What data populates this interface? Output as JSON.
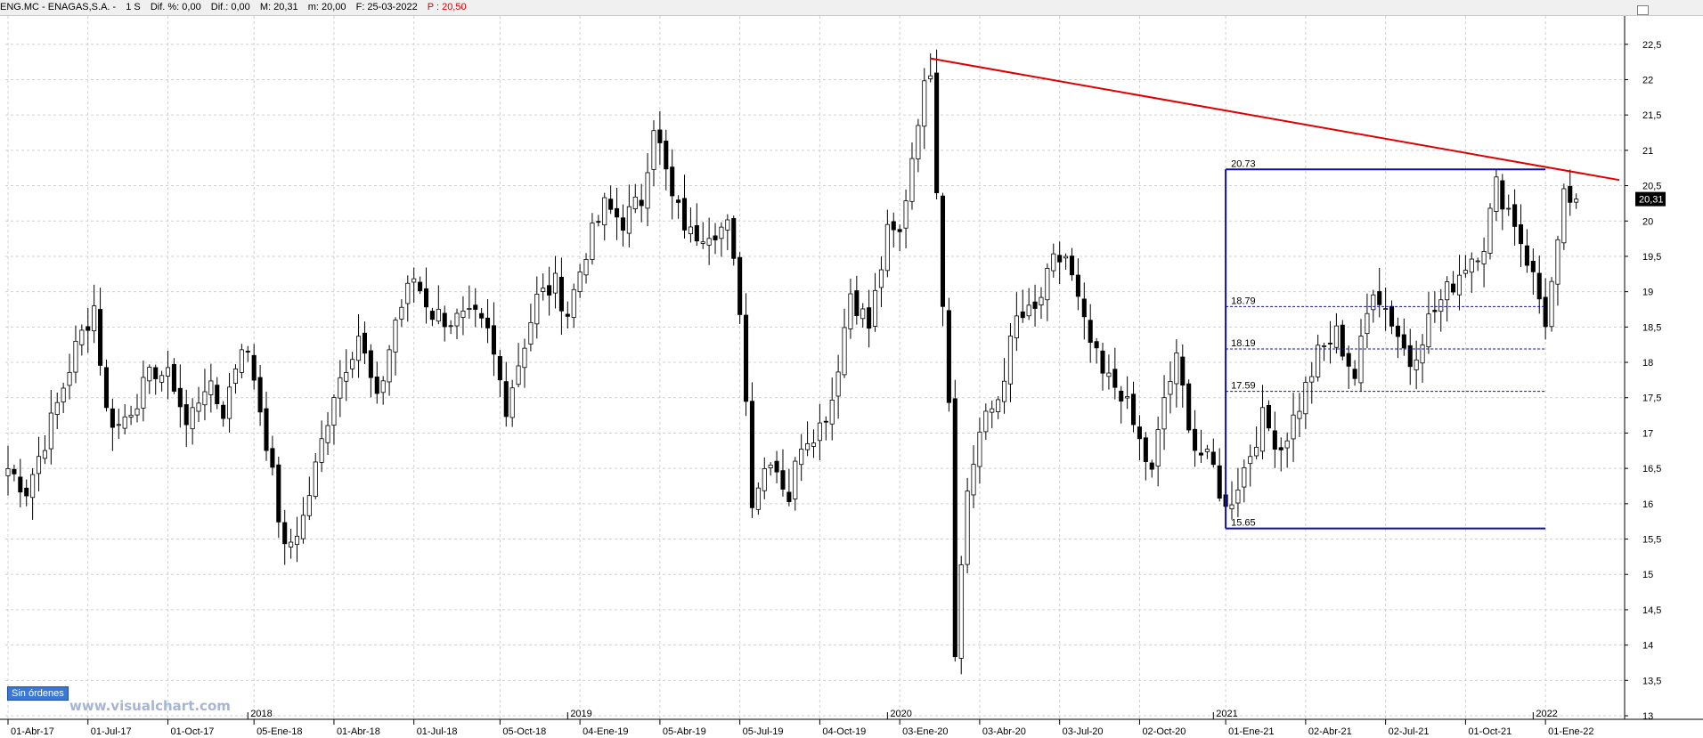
{
  "header": {
    "symbol": "ENG.MC - ENAGAS,S.A. -",
    "timeframe": "1 S",
    "dif_pct": "Dif. %: 0,00",
    "dif": "Dif.: 0,00",
    "max": "M: 20,31",
    "min": "m: 20,00",
    "date": "F: 25-03-2022",
    "price": "P : 20,50"
  },
  "badge": "Sin órdenes",
  "watermark": "www.visualchart.com",
  "colors": {
    "up": "#ffffff",
    "down": "#000000",
    "trendline": "#e00000",
    "fibo": "#1010a0",
    "grid": "#d0d0d0"
  },
  "chart_data": {
    "type": "candlestick",
    "y_ticks": [
      "22,5",
      "22",
      "21,5",
      "21",
      "20,5",
      "20",
      "19,5",
      "19",
      "18,5",
      "18",
      "17,5",
      "17",
      "16,5",
      "16",
      "15,5",
      "15",
      "14,5",
      "14",
      "13,5",
      "13"
    ],
    "ylim": [
      12.95,
      22.9
    ],
    "x_labels": [
      "01-Abr-17",
      "01-Jul-17",
      "01-Oct-17",
      "05-Ene-18",
      "01-Abr-18",
      "01-Jul-18",
      "05-Oct-18",
      "04-Ene-19",
      "05-Abr-19",
      "05-Jul-19",
      "04-Oct-19",
      "03-Ene-20",
      "03-Abr-20",
      "03-Jul-20",
      "02-Oct-20",
      "01-Ene-21",
      "02-Abr-21",
      "02-Jul-21",
      "01-Oct-21",
      "01-Ene-22"
    ],
    "x_label_weeks": [
      0,
      13,
      26,
      40,
      53,
      66,
      80,
      93,
      106,
      119,
      132,
      145,
      158,
      171,
      184,
      198,
      211,
      224,
      237,
      250
    ],
    "year_labels": [
      "2018",
      "2019",
      "2020",
      "2021",
      "2022"
    ],
    "year_label_weeks": [
      39,
      91,
      143,
      196,
      248
    ],
    "last_price_label": "20,31",
    "weeks_total": 262,
    "anchors": [
      [
        0,
        16.5
      ],
      [
        3,
        16.2
      ],
      [
        6,
        16.9
      ],
      [
        8,
        17.4
      ],
      [
        11,
        18.2
      ],
      [
        14,
        18.8
      ],
      [
        16,
        17.3
      ],
      [
        18,
        17.1
      ],
      [
        21,
        17.5
      ],
      [
        24,
        17.9
      ],
      [
        27,
        17.7
      ],
      [
        29,
        17.1
      ],
      [
        32,
        17.7
      ],
      [
        35,
        17.3
      ],
      [
        38,
        18.3
      ],
      [
        40,
        17.8
      ],
      [
        42,
        16.9
      ],
      [
        45,
        15.3
      ],
      [
        48,
        15.8
      ],
      [
        50,
        16.5
      ],
      [
        53,
        17.6
      ],
      [
        57,
        18.4
      ],
      [
        60,
        17.4
      ],
      [
        63,
        18.6
      ],
      [
        66,
        19.2
      ],
      [
        69,
        18.7
      ],
      [
        72,
        18.6
      ],
      [
        76,
        18.6
      ],
      [
        78,
        18.4
      ],
      [
        81,
        17.4
      ],
      [
        83,
        18.0
      ],
      [
        86,
        18.9
      ],
      [
        89,
        19.1
      ],
      [
        91,
        18.7
      ],
      [
        94,
        19.6
      ],
      [
        97,
        20.2
      ],
      [
        100,
        20.0
      ],
      [
        103,
        20.3
      ],
      [
        105,
        21.4
      ],
      [
        108,
        20.3
      ],
      [
        111,
        19.8
      ],
      [
        114,
        19.9
      ],
      [
        117,
        19.9
      ],
      [
        119,
        18.8
      ],
      [
        121,
        16.1
      ],
      [
        124,
        16.7
      ],
      [
        127,
        16.1
      ],
      [
        129,
        16.9
      ],
      [
        132,
        17.1
      ],
      [
        134,
        17.5
      ],
      [
        137,
        19.0
      ],
      [
        140,
        18.5
      ],
      [
        143,
        19.8
      ],
      [
        145,
        19.8
      ],
      [
        148,
        21.5
      ],
      [
        150,
        22.2
      ],
      [
        152,
        18.9
      ],
      [
        153,
        17.5
      ],
      [
        154,
        14.0
      ],
      [
        156,
        16.2
      ],
      [
        158,
        17.0
      ],
      [
        161,
        17.5
      ],
      [
        164,
        18.6
      ],
      [
        167,
        18.7
      ],
      [
        170,
        19.4
      ],
      [
        172,
        19.5
      ],
      [
        175,
        18.5
      ],
      [
        178,
        17.8
      ],
      [
        181,
        17.6
      ],
      [
        183,
        17.1
      ],
      [
        186,
        16.4
      ],
      [
        188,
        17.5
      ],
      [
        190,
        18.0
      ],
      [
        193,
        16.8
      ],
      [
        196,
        16.5
      ],
      [
        198,
        15.9
      ],
      [
        201,
        16.5
      ],
      [
        204,
        17.2
      ],
      [
        207,
        16.8
      ],
      [
        210,
        17.4
      ],
      [
        213,
        18.1
      ],
      [
        216,
        18.4
      ],
      [
        219,
        17.8
      ],
      [
        222,
        19.1
      ],
      [
        225,
        18.6
      ],
      [
        228,
        18.0
      ],
      [
        231,
        18.6
      ],
      [
        234,
        19.0
      ],
      [
        237,
        19.4
      ],
      [
        240,
        19.7
      ],
      [
        242,
        20.5
      ],
      [
        245,
        20.0
      ],
      [
        248,
        19.2
      ],
      [
        250,
        18.6
      ],
      [
        252,
        19.6
      ],
      [
        253,
        20.3
      ],
      [
        255,
        20.31
      ]
    ],
    "annotations": {
      "trendline": {
        "from": {
          "week": 150,
          "value": 22.3
        },
        "to": {
          "week": 262,
          "value": 20.58
        }
      },
      "fibo_box": {
        "start_week": 198,
        "end_week": 250,
        "high": 20.73,
        "low": 15.65
      },
      "fibo_levels": [
        {
          "label": "20.73",
          "value": 20.73
        },
        {
          "label": "18.79",
          "value": 18.79
        },
        {
          "label": "18.19",
          "value": 18.19
        },
        {
          "label": "17.59",
          "value": 17.59
        },
        {
          "label": "15.65",
          "value": 15.65
        }
      ]
    }
  }
}
